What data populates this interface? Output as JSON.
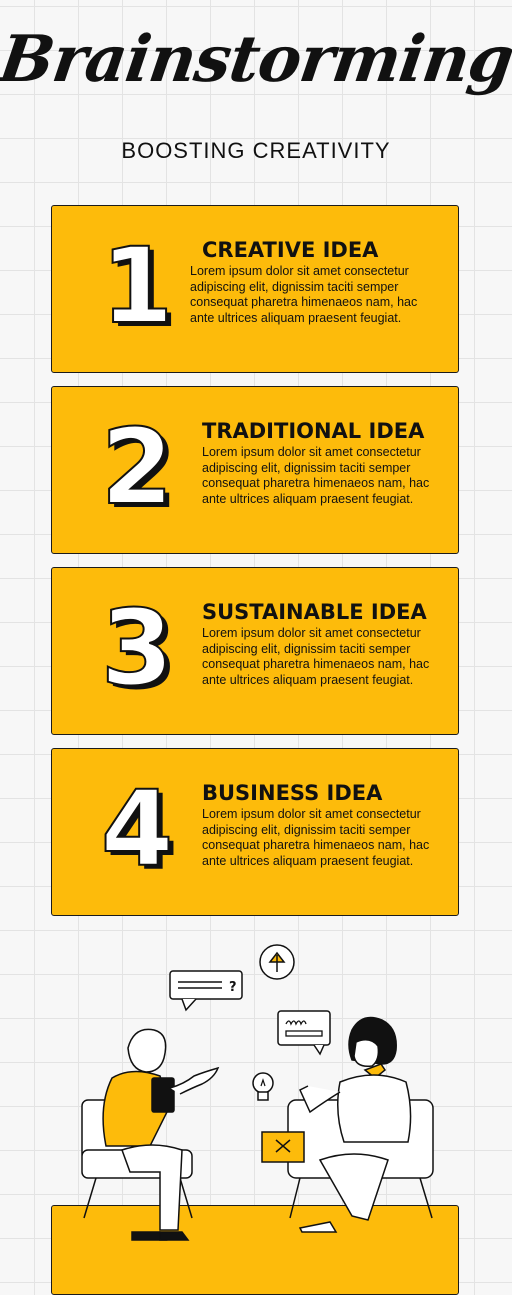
{
  "header": {
    "title": "Brainstorming",
    "subtitle": "BOOSTING CREATIVITY"
  },
  "cards": [
    {
      "number": "1",
      "title": "CREATIVE IDEA",
      "body": "Lorem ipsum dolor sit amet consectetur adipiscing elit, dignissim taciti semper consequat pharetra himenaeos nam, hac ante ultrices aliquam praesent feugiat."
    },
    {
      "number": "2",
      "title": "TRADITIONAL IDEA",
      "body": "Lorem ipsum dolor sit amet consectetur adipiscing elit, dignissim taciti semper consequat pharetra himenaeos nam, hac ante ultrices aliquam praesent feugiat."
    },
    {
      "number": "3",
      "title": "SUSTAINABLE IDEA",
      "body": "Lorem ipsum dolor sit amet consectetur adipiscing elit, dignissim taciti semper consequat pharetra himenaeos nam, hac ante ultrices aliquam praesent feugiat."
    },
    {
      "number": "4",
      "title": "BUSINESS IDEA",
      "body": "Lorem ipsum dolor sit amet consectetur adipiscing elit, dignissim taciti semper consequat pharetra himenaeos nam, hac ante ultrices aliquam praesent feugiat."
    }
  ],
  "illustration": {
    "speech_mark": "?"
  },
  "colors": {
    "accent": "#fdbb0b",
    "ink": "#111111",
    "background": "#f7f7f7"
  }
}
